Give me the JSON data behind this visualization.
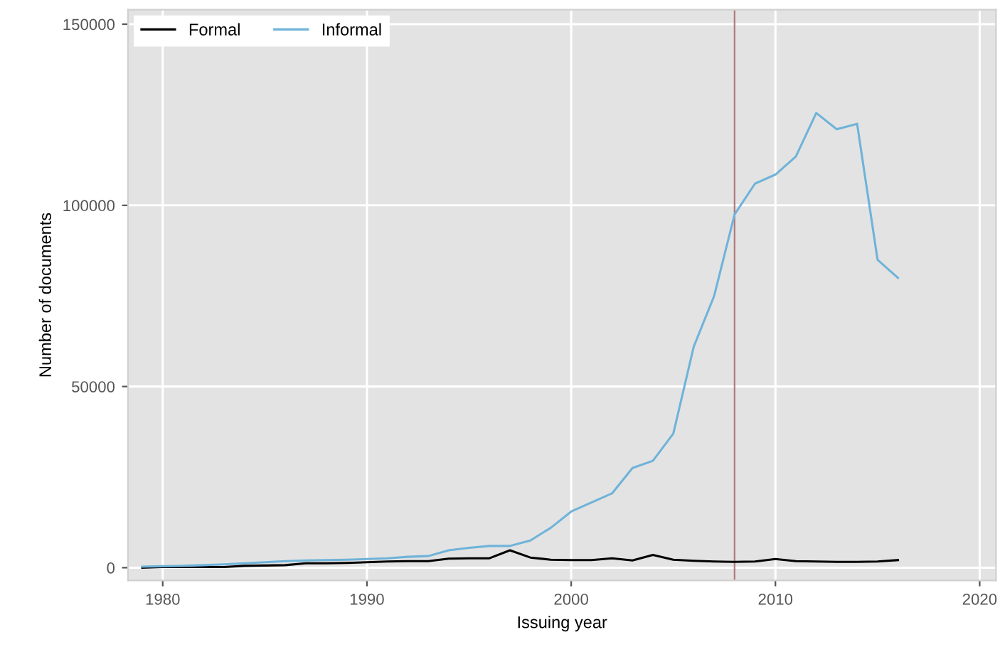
{
  "chart_data": {
    "type": "line",
    "xlabel": "Issuing year",
    "ylabel": "Number of documents",
    "x": [
      1979,
      1980,
      1981,
      1982,
      1983,
      1984,
      1985,
      1986,
      1987,
      1988,
      1989,
      1990,
      1991,
      1992,
      1993,
      1994,
      1995,
      1996,
      1997,
      1998,
      1999,
      2000,
      2001,
      2002,
      2003,
      2004,
      2005,
      2006,
      2007,
      2008,
      2009,
      2010,
      2011,
      2012,
      2013,
      2014,
      2015,
      2016
    ],
    "series": [
      {
        "name": "Formal",
        "color": "#000000",
        "values": [
          0,
          200,
          200,
          200,
          200,
          500,
          600,
          700,
          1200,
          1200,
          1300,
          1500,
          1700,
          1800,
          1800,
          2500,
          2600,
          2600,
          4800,
          2800,
          2200,
          2100,
          2100,
          2600,
          2000,
          3500,
          2200,
          1900,
          1700,
          1600,
          1700,
          2400,
          1800,
          1700,
          1600,
          1600,
          1700,
          2100
        ]
      },
      {
        "name": "Informal",
        "color": "#6fb3d9",
        "values": [
          300,
          400,
          500,
          700,
          900,
          1200,
          1500,
          1800,
          2000,
          2100,
          2200,
          2400,
          2600,
          3000,
          3200,
          4800,
          5500,
          6000,
          6000,
          7500,
          11000,
          15500,
          18000,
          20500,
          27500,
          29500,
          37000,
          61000,
          75000,
          97500,
          106000,
          108500,
          113500,
          125500,
          121000,
          122500,
          85000,
          80000
        ]
      }
    ],
    "xlim": [
      1978.3,
      2020.8
    ],
    "ylim": [
      -3500,
      154000
    ],
    "xticks": [
      1980,
      1990,
      2000,
      2010,
      2020
    ],
    "yticks": [
      0,
      50000,
      100000,
      150000
    ],
    "ref_lines": [
      {
        "axis": "x",
        "value": 2008,
        "color": "#b07a7a"
      }
    ],
    "grid": true,
    "legend": "top left"
  }
}
